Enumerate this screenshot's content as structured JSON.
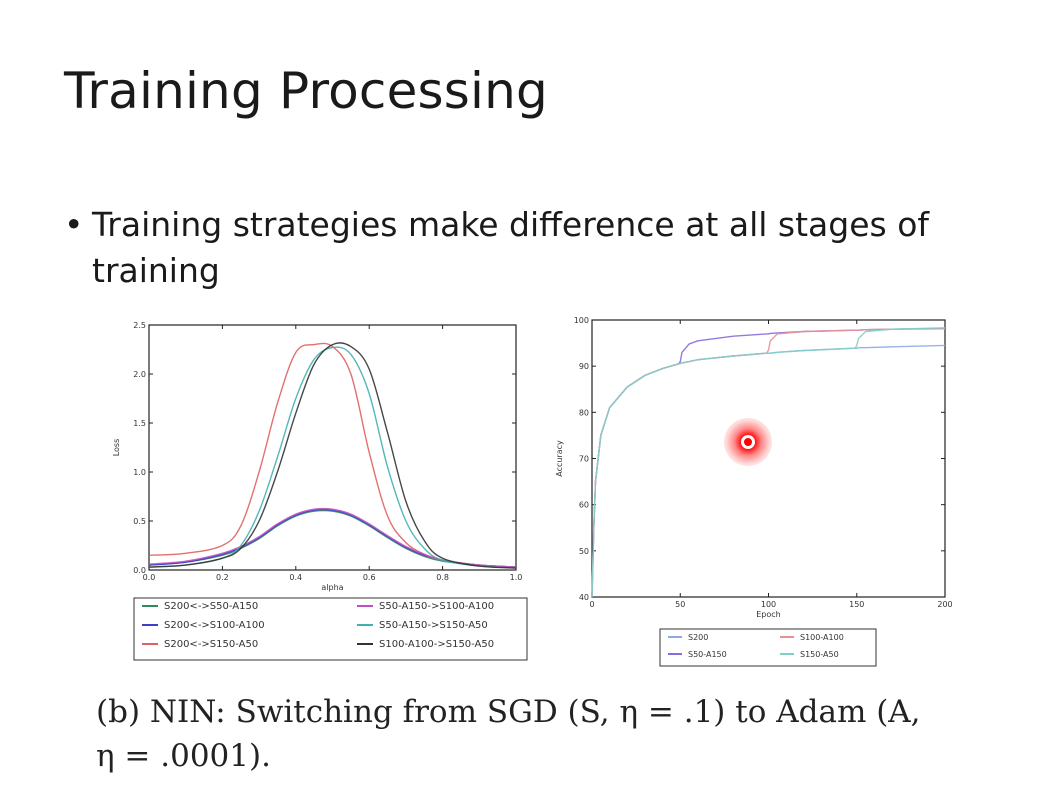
{
  "slide": {
    "title": "Training Processing",
    "bullet": "Training strategies make difference at all stages of training",
    "bullet_marker": "•",
    "caption_line1": "(b) NIN: Switching from SGD (S, η = .1) to Adam (A,",
    "caption_line2": "η = .0001)."
  },
  "chart_data": [
    {
      "type": "line",
      "xlabel": "alpha",
      "ylabel": "Loss",
      "xlim": [
        0,
        1.0
      ],
      "ylim": [
        0,
        2.5
      ],
      "xticks": [
        "0.0",
        "0.2",
        "0.4",
        "0.6",
        "0.8",
        "1.0"
      ],
      "yticks": [
        "0.0",
        "0.5",
        "1.0",
        "1.5",
        "2.0",
        "2.5"
      ],
      "legend_position": "below",
      "x": [
        0,
        0.1,
        0.2,
        0.25,
        0.3,
        0.35,
        0.4,
        0.45,
        0.5,
        0.55,
        0.6,
        0.65,
        0.7,
        0.75,
        0.8,
        0.9,
        1.0
      ],
      "series": [
        {
          "name": "S200<->S50-A150",
          "color": "#2e8b57",
          "values": [
            0.05,
            0.08,
            0.15,
            0.22,
            0.32,
            0.45,
            0.55,
            0.6,
            0.6,
            0.55,
            0.45,
            0.33,
            0.22,
            0.14,
            0.09,
            0.05,
            0.03
          ]
        },
        {
          "name": "S200<->S100-A100",
          "color": "#3b3bd6",
          "values": [
            0.05,
            0.08,
            0.16,
            0.23,
            0.33,
            0.46,
            0.56,
            0.61,
            0.61,
            0.56,
            0.46,
            0.34,
            0.23,
            0.15,
            0.1,
            0.05,
            0.03
          ]
        },
        {
          "name": "S200<->S150-A50",
          "color": "#e06060",
          "values": [
            0.15,
            0.17,
            0.25,
            0.45,
            1.0,
            1.7,
            2.22,
            2.3,
            2.28,
            2.0,
            1.2,
            0.55,
            0.28,
            0.16,
            0.1,
            0.05,
            0.03
          ]
        },
        {
          "name": "S50-A150->S100-A100",
          "color": "#c050c0",
          "values": [
            0.06,
            0.09,
            0.17,
            0.24,
            0.34,
            0.47,
            0.57,
            0.62,
            0.62,
            0.57,
            0.47,
            0.35,
            0.24,
            0.16,
            0.1,
            0.05,
            0.03
          ]
        },
        {
          "name": "S50-A150->S150-A50",
          "color": "#40b0b0",
          "values": [
            0.03,
            0.05,
            0.12,
            0.25,
            0.6,
            1.15,
            1.75,
            2.15,
            2.27,
            2.2,
            1.8,
            1.05,
            0.5,
            0.22,
            0.1,
            0.04,
            0.02
          ]
        },
        {
          "name": "S100-A100->S150-A50",
          "color": "#333333",
          "values": [
            0.03,
            0.05,
            0.12,
            0.22,
            0.5,
            1.0,
            1.6,
            2.1,
            2.3,
            2.28,
            2.05,
            1.4,
            0.7,
            0.3,
            0.12,
            0.04,
            0.02
          ]
        }
      ]
    },
    {
      "type": "line",
      "xlabel": "Epoch",
      "ylabel": "Accuracy",
      "xlim": [
        0,
        200
      ],
      "ylim": [
        40,
        100
      ],
      "xticks": [
        "0",
        "50",
        "100",
        "150",
        "200"
      ],
      "yticks": [
        "40",
        "50",
        "60",
        "70",
        "80",
        "90",
        "100"
      ],
      "legend_position": "below",
      "x": [
        0,
        1,
        2,
        5,
        10,
        20,
        30,
        40,
        49,
        50,
        51,
        55,
        60,
        80,
        99,
        100,
        101,
        105,
        120,
        149,
        150,
        151,
        155,
        170,
        200
      ],
      "series": [
        {
          "name": "S200",
          "color": "#8fa8e8",
          "values": [
            40,
            55,
            65,
            75,
            81,
            85.5,
            88,
            89.5,
            90.5,
            90.6,
            90.7,
            91,
            91.4,
            92.2,
            92.8,
            92.8,
            92.8,
            93,
            93.4,
            93.9,
            93.9,
            94,
            94,
            94.2,
            94.5
          ]
        },
        {
          "name": "S50-A150",
          "color": "#8a6ae0",
          "values": [
            40,
            55,
            65,
            75,
            81,
            85.5,
            88,
            89.5,
            90.5,
            91,
            93,
            94.8,
            95.5,
            96.5,
            97,
            97,
            97.1,
            97.2,
            97.5,
            97.8,
            97.8,
            97.8,
            97.9,
            98,
            98.2
          ]
        },
        {
          "name": "S100-A100",
          "color": "#e89090",
          "values": [
            40,
            55,
            65,
            75,
            81,
            85.5,
            88,
            89.5,
            90.5,
            90.6,
            90.7,
            91,
            91.4,
            92.2,
            92.8,
            93.5,
            95.5,
            97,
            97.5,
            97.8,
            97.8,
            97.8,
            97.9,
            98,
            98.1
          ]
        },
        {
          "name": "S150-A50",
          "color": "#80d0c8",
          "values": [
            40,
            55,
            65,
            75,
            81,
            85.5,
            88,
            89.5,
            90.5,
            90.6,
            90.7,
            91,
            91.4,
            92.2,
            92.8,
            92.8,
            92.8,
            93,
            93.4,
            93.9,
            94.5,
            96,
            97.5,
            98,
            98.3
          ]
        }
      ]
    }
  ]
}
